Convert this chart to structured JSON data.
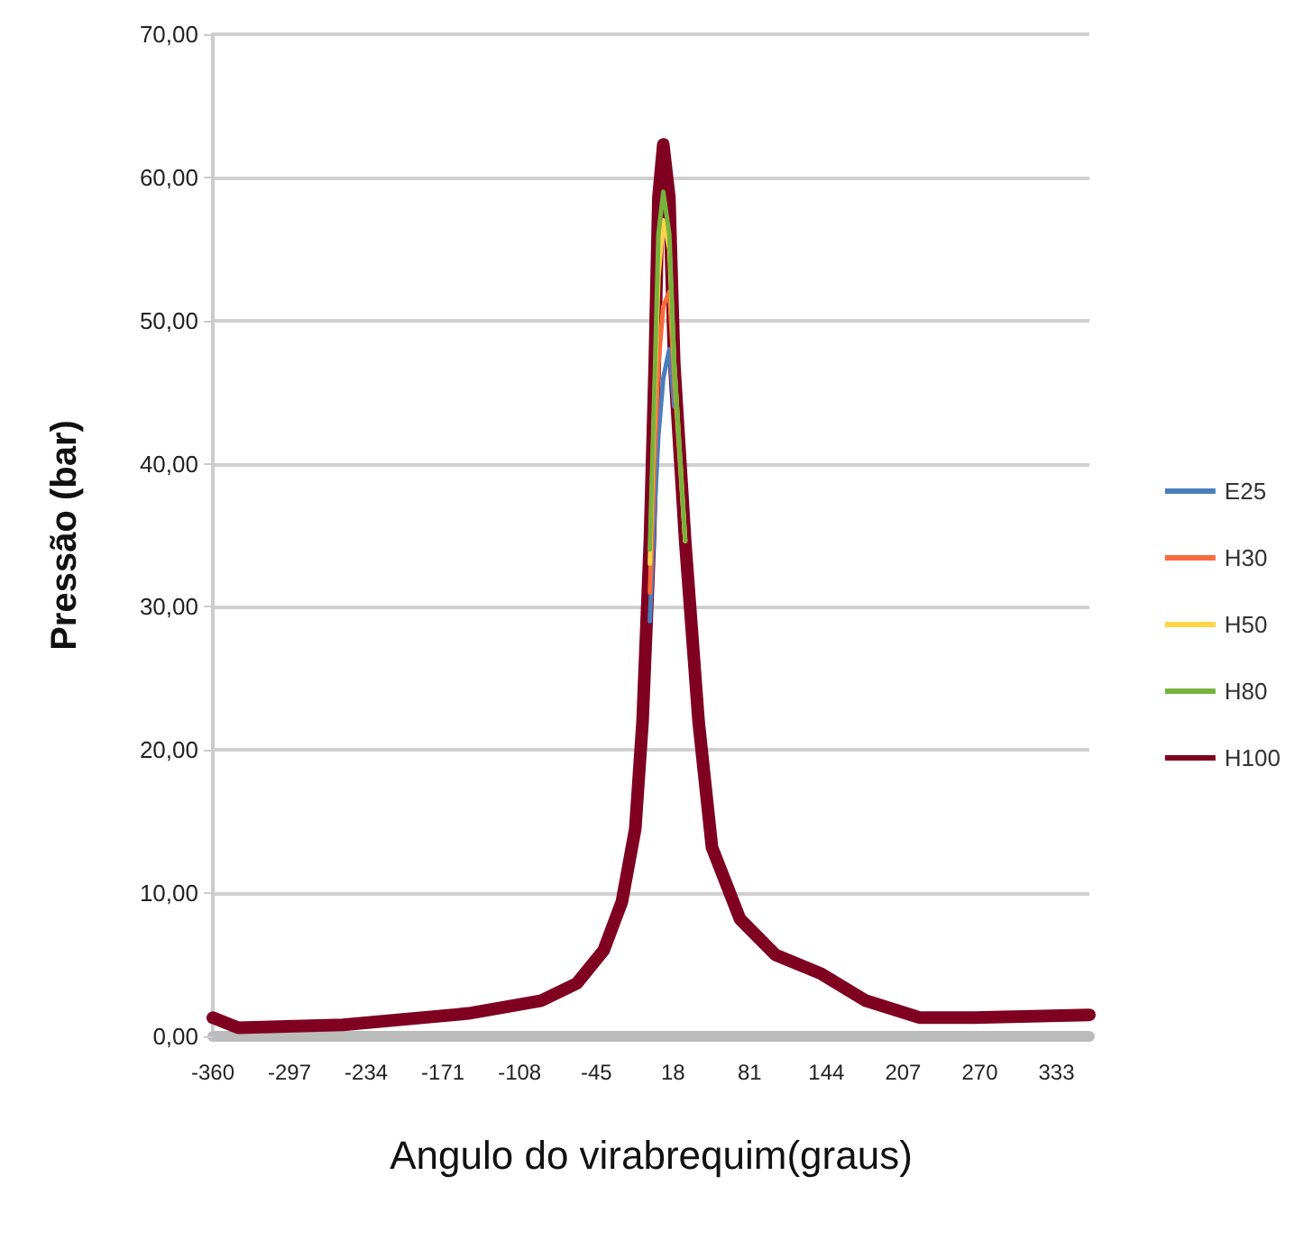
{
  "chart_data": {
    "type": "line",
    "xlabel": "Angulo do virabrequim(graus)",
    "ylabel": "Pressão (bar)",
    "xlim": [
      -360,
      360
    ],
    "xticks": [
      -360,
      -297,
      -234,
      -171,
      -108,
      -45,
      18,
      81,
      144,
      207,
      270,
      333
    ],
    "ylim": [
      0,
      70
    ],
    "yticks": [
      {
        "value": 0,
        "label": "0,00"
      },
      {
        "value": 10,
        "label": "10,00"
      },
      {
        "value": 20,
        "label": "20,00"
      },
      {
        "value": 30,
        "label": "30,00"
      },
      {
        "value": 40,
        "label": "40,00"
      },
      {
        "value": 50,
        "label": "50,00"
      },
      {
        "value": 60,
        "label": "60,00"
      },
      {
        "value": 70,
        "label": "70,00"
      }
    ],
    "grid": "y",
    "legend": "right",
    "marker": "none",
    "line_style": "solid",
    "x": [
      -360,
      -339,
      -253,
      -150,
      -90,
      -61,
      -39,
      -24,
      -13,
      -7,
      -1,
      3,
      6,
      10,
      15,
      19,
      28,
      39,
      50,
      73,
      102,
      139,
      176,
      221,
      265,
      360
    ],
    "series": [
      {
        "name": "E25",
        "color": "#4a7ebb",
        "values": [
          null,
          null,
          null,
          null,
          null,
          null,
          null,
          null,
          null,
          null,
          29,
          37,
          42,
          46,
          48,
          44,
          null,
          null,
          null,
          null,
          null,
          null,
          null,
          null,
          null,
          null
        ]
      },
      {
        "name": "H30",
        "color": "#f96b3c",
        "values": [
          null,
          null,
          null,
          null,
          null,
          null,
          null,
          null,
          null,
          null,
          31,
          41,
          47,
          51,
          52,
          46,
          34.6,
          null,
          null,
          null,
          null,
          null,
          null,
          null,
          null,
          null
        ]
      },
      {
        "name": "H50",
        "color": "#ffd447",
        "values": [
          null,
          null,
          null,
          null,
          null,
          null,
          null,
          null,
          null,
          null,
          33,
          45,
          53,
          57,
          55,
          47,
          34.6,
          null,
          null,
          null,
          null,
          null,
          null,
          null,
          null,
          null
        ]
      },
      {
        "name": "H80",
        "color": "#77b33c",
        "values": [
          null,
          null,
          null,
          null,
          null,
          null,
          null,
          null,
          null,
          null,
          34,
          46,
          56,
          59,
          56,
          47,
          34.6,
          null,
          null,
          null,
          null,
          null,
          null,
          null,
          null,
          null
        ]
      },
      {
        "name": "H100",
        "color": "#7f0020",
        "values": [
          1.3,
          0.6,
          0.8,
          1.6,
          2.5,
          3.7,
          6.0,
          9.4,
          14.5,
          22,
          34.6,
          47,
          58.6,
          62.3,
          58.6,
          47,
          34.6,
          22,
          13.2,
          8.2,
          5.7,
          4.4,
          2.5,
          1.3,
          1.3,
          1.5
        ]
      }
    ]
  }
}
